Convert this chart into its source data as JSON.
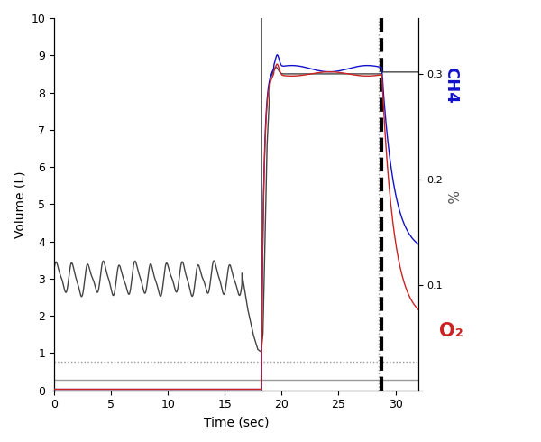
{
  "xlabel": "Time (sec)",
  "ylabel": "Volume (L)",
  "xlim": [
    0,
    32
  ],
  "ylim": [
    0,
    10
  ],
  "ylim_right": [
    0,
    0.353
  ],
  "yticks_left": [
    0,
    1,
    2,
    3,
    4,
    5,
    6,
    7,
    8,
    9,
    10
  ],
  "yticks_right": [
    0.0,
    0.1,
    0.2,
    0.3
  ],
  "ytick_right_labels": [
    "",
    "0.1",
    "0.2",
    "0.3"
  ],
  "xticks": [
    0,
    5,
    10,
    15,
    20,
    25,
    30
  ],
  "vline1_x": 18.2,
  "vline2_x": 28.8,
  "vline_dot_x": 28.5,
  "hline1_y": 0.78,
  "hline2_y": 0.28,
  "color_main": "#444444",
  "color_red": "#cc2222",
  "color_blue": "#1111cc",
  "color_gray": "#999999",
  "figsize": [
    6.0,
    4.9
  ],
  "dpi": 100
}
